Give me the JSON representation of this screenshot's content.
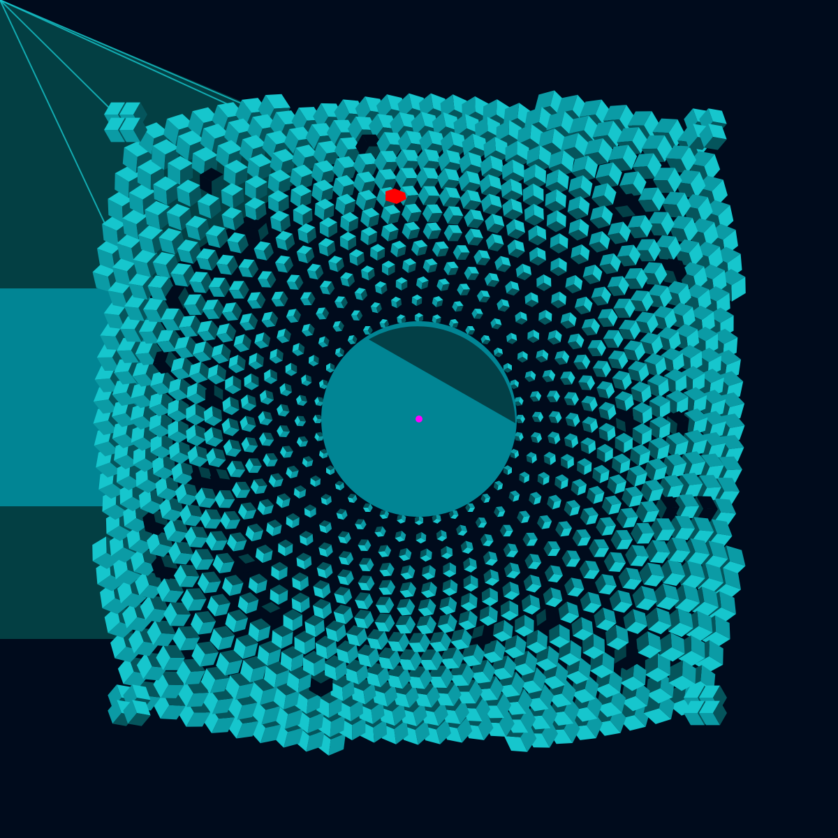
{
  "game": {
    "mode": "cube-tunnel",
    "palette": {
      "background": "#000b1c",
      "shadow_panel": "#033f43",
      "light_panel": "#018594",
      "cube_top": "#16c6cd",
      "cube_left": "#0b9ba5",
      "cube_right": "#05555c",
      "cube_edge": "#034047",
      "core": "#018594",
      "core_shadow": "#034047",
      "player": "#ff0000",
      "target": "#ff00ff",
      "hole": "#000b1c",
      "beam": "#16c6cd"
    },
    "tunnel": {
      "rings": 13,
      "cubes_per_ring": 96,
      "twist_per_ring": 0.07,
      "distortion": 0.32
    },
    "player": {
      "label": "player-cube",
      "ring": 11,
      "angle_deg": 265
    },
    "target": {
      "label": "target-dot"
    },
    "broken_tiles": 34
  }
}
